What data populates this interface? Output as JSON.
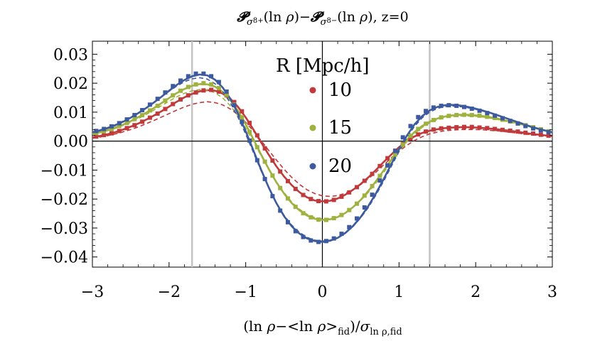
{
  "chart_data": {
    "type": "line",
    "title": "𝓟σ8+(ln ρ)−𝓟σ8−(ln ρ), z=0",
    "title_parts": {
      "p1": "𝓟",
      "s1": "σ",
      "s1b": "8+",
      "m1": "(ln ",
      "rho1": "ρ",
      "c1": ")−",
      "p2": "𝓟",
      "s2": "σ",
      "s2b": "8−",
      "m2": "(ln ",
      "rho2": "ρ",
      "c2": "), z=0"
    },
    "xlabel": "(ln ρ−<ln ρ>fid)/σln ρ,fid",
    "xlabel_parts": {
      "a": "(ln ",
      "rho": "ρ",
      "b": "−<ln ",
      "rho2": "ρ",
      "c": ">",
      "sub1": "fid",
      "d": ")/",
      "sig": "σ",
      "sub2": "ln ρ,fid"
    },
    "ylabel": "",
    "xlim": [
      -3,
      3
    ],
    "ylim": [
      -0.0435,
      0.0345
    ],
    "x_ticks": [
      "−3",
      "−2",
      "−1",
      "0",
      "1",
      "2",
      "3"
    ],
    "y_ticks": [
      "0.03",
      "0.02",
      "0.01",
      "0.00",
      "−0.01",
      "−0.02",
      "−0.03",
      "−0.04"
    ],
    "x_tick_values": [
      -3,
      -2,
      -1,
      0,
      1,
      2,
      3
    ],
    "y_tick_values": [
      0.03,
      0.02,
      0.01,
      0.0,
      -0.01,
      -0.02,
      -0.03,
      -0.04
    ],
    "vertical_lines": [
      -1.7,
      1.4
    ],
    "grid": false,
    "legend": {
      "title": "R [Mpc/h]",
      "placement": "center"
    },
    "x": [
      -3.0,
      -2.9,
      -2.8,
      -2.7,
      -2.6,
      -2.5,
      -2.4,
      -2.3,
      -2.2,
      -2.1,
      -2.0,
      -1.9,
      -1.8,
      -1.7,
      -1.6,
      -1.5,
      -1.4,
      -1.3,
      -1.2,
      -1.1,
      -1.0,
      -0.9,
      -0.8,
      -0.7,
      -0.6,
      -0.5,
      -0.4,
      -0.3,
      -0.2,
      -0.1,
      0.0,
      0.1,
      0.2,
      0.3,
      0.4,
      0.5,
      0.6,
      0.7,
      0.8,
      0.9,
      1.0,
      1.1,
      1.2,
      1.3,
      1.4,
      1.5,
      1.6,
      1.7,
      1.8,
      1.9,
      2.0,
      2.1,
      2.2,
      2.3,
      2.4,
      2.5,
      2.6,
      2.7,
      2.8,
      2.9,
      3.0
    ],
    "series": [
      {
        "name": "10",
        "color": "#c0393b",
        "solid": [
          0.0013,
          0.0018,
          0.0024,
          0.0031,
          0.004,
          0.005,
          0.0061,
          0.0074,
          0.0088,
          0.0103,
          0.0119,
          0.0136,
          0.0151,
          0.0163,
          0.0172,
          0.0176,
          0.0174,
          0.0164,
          0.0146,
          0.0118,
          0.0082,
          0.004,
          -0.0004,
          -0.0047,
          -0.0087,
          -0.0122,
          -0.0152,
          -0.0176,
          -0.0194,
          -0.0205,
          -0.0208,
          -0.0206,
          -0.0198,
          -0.0185,
          -0.0168,
          -0.0148,
          -0.0125,
          -0.0099,
          -0.0072,
          -0.0046,
          -0.0021,
          0.0,
          0.0016,
          0.0028,
          0.0036,
          0.0041,
          0.0045,
          0.0047,
          0.0048,
          0.0048,
          0.0047,
          0.0045,
          0.0043,
          0.004,
          0.0037,
          0.0034,
          0.003,
          0.0026,
          0.0023,
          0.002,
          0.0017
        ],
        "dashed": [
          0.001,
          0.0014,
          0.0019,
          0.0025,
          0.0032,
          0.004,
          0.0049,
          0.006,
          0.0071,
          0.0083,
          0.0095,
          0.0107,
          0.0118,
          0.0127,
          0.0133,
          0.0136,
          0.0133,
          0.0125,
          0.0111,
          0.0091,
          0.0065,
          0.0035,
          0.0002,
          -0.0032,
          -0.0065,
          -0.0097,
          -0.0125,
          -0.0149,
          -0.0168,
          -0.0181,
          -0.0189,
          -0.0191,
          -0.0188,
          -0.018,
          -0.0167,
          -0.015,
          -0.013,
          -0.0107,
          -0.0082,
          -0.0058,
          -0.0035,
          -0.0015,
          0.0002,
          0.0015,
          0.0025,
          0.0031,
          0.0036,
          0.0038,
          0.004,
          0.004,
          0.004,
          0.0039,
          0.0037,
          0.0035,
          0.0032,
          0.0029,
          0.0026,
          0.0023,
          0.002,
          0.0017,
          0.0015
        ],
        "points_x": [
          -2.95,
          -2.85,
          -2.75,
          -2.65,
          -2.55,
          -2.45,
          -2.35,
          -2.25,
          -2.15,
          -2.05,
          -1.95,
          -1.85,
          -1.75,
          -1.65,
          -1.55,
          -1.45,
          -1.35,
          -1.25,
          -1.15,
          -1.05,
          -0.95,
          -0.85,
          -0.75,
          -0.65,
          -0.55,
          -0.45,
          -0.35,
          -0.25,
          -0.15,
          -0.05,
          0.05,
          0.15,
          0.25,
          0.35,
          0.45,
          0.55,
          0.65,
          0.75,
          0.85,
          0.95,
          1.05,
          1.15,
          1.25,
          1.35,
          1.45,
          1.55,
          1.65,
          1.75,
          1.85,
          1.95,
          2.05,
          2.15,
          2.25,
          2.35,
          2.45,
          2.55,
          2.65,
          2.75,
          2.85,
          2.95
        ],
        "points_y": [
          0.0016,
          0.0021,
          0.0027,
          0.0035,
          0.0045,
          0.0055,
          0.0067,
          0.0081,
          0.0095,
          0.0111,
          0.0128,
          0.0144,
          0.0158,
          0.0168,
          0.0175,
          0.0177,
          0.0171,
          0.0158,
          0.0135,
          0.0103,
          0.0063,
          0.002,
          -0.0025,
          -0.0067,
          -0.0105,
          -0.0138,
          -0.0165,
          -0.0186,
          -0.02,
          -0.0207,
          -0.0208,
          -0.0203,
          -0.0192,
          -0.0177,
          -0.0159,
          -0.0137,
          -0.0113,
          -0.0086,
          -0.0059,
          -0.0033,
          -0.001,
          0.0009,
          0.0023,
          0.0033,
          0.004,
          0.0044,
          0.0046,
          0.0048,
          0.0049,
          0.0049,
          0.0047,
          0.0045,
          0.0042,
          0.0039,
          0.0036,
          0.0033,
          0.0029,
          0.0026,
          0.0022,
          0.0019
        ]
      },
      {
        "name": "15",
        "color": "#9fb23f",
        "solid": [
          0.0025,
          0.0031,
          0.0038,
          0.0047,
          0.0057,
          0.0069,
          0.0083,
          0.0098,
          0.0114,
          0.0131,
          0.0149,
          0.0166,
          0.018,
          0.0191,
          0.0197,
          0.0196,
          0.0188,
          0.017,
          0.0142,
          0.0104,
          0.0058,
          0.0007,
          -0.0046,
          -0.0096,
          -0.0142,
          -0.0181,
          -0.0214,
          -0.0239,
          -0.0257,
          -0.0268,
          -0.0272,
          -0.027,
          -0.0262,
          -0.0248,
          -0.0228,
          -0.0203,
          -0.0172,
          -0.0138,
          -0.0101,
          -0.0064,
          -0.0028,
          0.0004,
          0.0031,
          0.0052,
          0.0067,
          0.0078,
          0.0085,
          0.0089,
          0.0091,
          0.0091,
          0.0089,
          0.0086,
          0.0082,
          0.0077,
          0.0071,
          0.0065,
          0.0058,
          0.0051,
          0.0044,
          0.0037,
          0.0031
        ],
        "dashed": [
          0.0023,
          0.0029,
          0.0036,
          0.0044,
          0.0054,
          0.0065,
          0.0078,
          0.0092,
          0.0107,
          0.0122,
          0.0138,
          0.0153,
          0.0165,
          0.0174,
          0.0178,
          0.0176,
          0.0167,
          0.0149,
          0.0122,
          0.0087,
          0.0045,
          -0.0002,
          -0.005,
          -0.0097,
          -0.014,
          -0.0178,
          -0.021,
          -0.0235,
          -0.0253,
          -0.0264,
          -0.0268,
          -0.0267,
          -0.026,
          -0.0247,
          -0.0228,
          -0.0205,
          -0.0177,
          -0.0144,
          -0.0108,
          -0.0071,
          -0.0035,
          -0.0003,
          0.0025,
          0.0047,
          0.0063,
          0.0074,
          0.0081,
          0.0085,
          0.0087,
          0.0087,
          0.0086,
          0.0083,
          0.0079,
          0.0074,
          0.0068,
          0.0062,
          0.0055,
          0.0049,
          0.0042,
          0.0036,
          0.003
        ],
        "points_x": [
          -2.95,
          -2.85,
          -2.75,
          -2.65,
          -2.55,
          -2.45,
          -2.35,
          -2.25,
          -2.15,
          -2.05,
          -1.95,
          -1.85,
          -1.75,
          -1.65,
          -1.55,
          -1.45,
          -1.35,
          -1.25,
          -1.15,
          -1.05,
          -0.95,
          -0.85,
          -0.75,
          -0.65,
          -0.55,
          -0.45,
          -0.35,
          -0.25,
          -0.15,
          -0.05,
          0.05,
          0.15,
          0.25,
          0.35,
          0.45,
          0.55,
          0.65,
          0.75,
          0.85,
          0.95,
          1.05,
          1.15,
          1.25,
          1.35,
          1.45,
          1.55,
          1.65,
          1.75,
          1.85,
          1.95,
          2.05,
          2.15,
          2.25,
          2.35,
          2.45,
          2.55,
          2.65,
          2.75,
          2.85,
          2.95
        ],
        "points_y": [
          0.0028,
          0.0034,
          0.0042,
          0.0052,
          0.0063,
          0.0076,
          0.009,
          0.0106,
          0.0122,
          0.014,
          0.0158,
          0.0174,
          0.0187,
          0.0196,
          0.02,
          0.0196,
          0.0183,
          0.016,
          0.0126,
          0.0082,
          0.0032,
          -0.0021,
          -0.0071,
          -0.0119,
          -0.0162,
          -0.0198,
          -0.0227,
          -0.0249,
          -0.0263,
          -0.0271,
          -0.0272,
          -0.0266,
          -0.0255,
          -0.0238,
          -0.0216,
          -0.0188,
          -0.0155,
          -0.012,
          -0.0083,
          -0.0046,
          -0.0012,
          0.0018,
          0.0042,
          0.006,
          0.0073,
          0.0082,
          0.0087,
          0.009,
          0.0091,
          0.009,
          0.0088,
          0.0084,
          0.008,
          0.0074,
          0.0068,
          0.0061,
          0.0055,
          0.0048,
          0.0041,
          0.0034
        ]
      },
      {
        "name": "20",
        "color": "#3d5a9e",
        "solid": [
          0.003,
          0.0037,
          0.0045,
          0.0055,
          0.0067,
          0.0081,
          0.0097,
          0.0114,
          0.0133,
          0.0153,
          0.0174,
          0.0194,
          0.0211,
          0.0224,
          0.023,
          0.0227,
          0.0212,
          0.0185,
          0.0146,
          0.0095,
          0.0034,
          -0.0032,
          -0.0098,
          -0.016,
          -0.0214,
          -0.0259,
          -0.0294,
          -0.0319,
          -0.0336,
          -0.0345,
          -0.0348,
          -0.0344,
          -0.0334,
          -0.0317,
          -0.0293,
          -0.0262,
          -0.0224,
          -0.018,
          -0.0131,
          -0.0079,
          -0.0028,
          0.0018,
          0.0057,
          0.0086,
          0.0106,
          0.0118,
          0.0124,
          0.0125,
          0.0123,
          0.0118,
          0.0112,
          0.0105,
          0.0097,
          0.0088,
          0.0079,
          0.007,
          0.0061,
          0.0052,
          0.0044,
          0.0037,
          0.003
        ],
        "dashed": [
          0.0032,
          0.0039,
          0.0047,
          0.0057,
          0.0069,
          0.0083,
          0.0098,
          0.0115,
          0.0133,
          0.0152,
          0.0172,
          0.019,
          0.0205,
          0.0215,
          0.0219,
          0.0214,
          0.0198,
          0.0171,
          0.0132,
          0.0082,
          0.0024,
          -0.0039,
          -0.0102,
          -0.0161,
          -0.0213,
          -0.0256,
          -0.029,
          -0.0315,
          -0.0332,
          -0.0342,
          -0.0345,
          -0.0342,
          -0.0333,
          -0.0317,
          -0.0295,
          -0.0265,
          -0.0229,
          -0.0186,
          -0.0138,
          -0.0087,
          -0.0036,
          0.0011,
          0.005,
          0.008,
          0.01,
          0.0113,
          0.0119,
          0.0121,
          0.0119,
          0.0115,
          0.011,
          0.0103,
          0.0096,
          0.0088,
          0.0079,
          0.007,
          0.0061,
          0.0053,
          0.0045,
          0.0038,
          0.0031
        ],
        "points_x": [
          -2.95,
          -2.85,
          -2.75,
          -2.65,
          -2.55,
          -2.45,
          -2.35,
          -2.25,
          -2.15,
          -2.05,
          -1.95,
          -1.85,
          -1.75,
          -1.65,
          -1.55,
          -1.45,
          -1.35,
          -1.25,
          -1.15,
          -1.05,
          -0.95,
          -0.85,
          -0.75,
          -0.65,
          -0.55,
          -0.45,
          -0.35,
          -0.25,
          -0.15,
          -0.05,
          0.05,
          0.15,
          0.25,
          0.35,
          0.45,
          0.55,
          0.65,
          0.75,
          0.85,
          0.95,
          1.05,
          1.15,
          1.25,
          1.35,
          1.45,
          1.55,
          1.65,
          1.75,
          1.85,
          1.95,
          2.05,
          2.15,
          2.25,
          2.35,
          2.45,
          2.55,
          2.65,
          2.75,
          2.85,
          2.95
        ],
        "points_y": [
          0.0035,
          0.0042,
          0.0051,
          0.0062,
          0.0075,
          0.009,
          0.0107,
          0.0126,
          0.0146,
          0.0168,
          0.019,
          0.0209,
          0.0224,
          0.0233,
          0.0233,
          0.0224,
          0.0204,
          0.0171,
          0.0124,
          0.0067,
          0.0002,
          -0.0066,
          -0.0131,
          -0.019,
          -0.024,
          -0.028,
          -0.0311,
          -0.0331,
          -0.0343,
          -0.0348,
          -0.0345,
          -0.0336,
          -0.032,
          -0.0297,
          -0.0267,
          -0.0229,
          -0.0185,
          -0.0136,
          -0.0084,
          -0.0034,
          0.0013,
          0.0052,
          0.0083,
          0.0104,
          0.0116,
          0.0122,
          0.0124,
          0.0122,
          0.0118,
          0.0112,
          0.0105,
          0.0097,
          0.0088,
          0.0079,
          0.007,
          0.0061,
          0.0052,
          0.0044,
          0.0037,
          0.0031
        ]
      }
    ]
  }
}
